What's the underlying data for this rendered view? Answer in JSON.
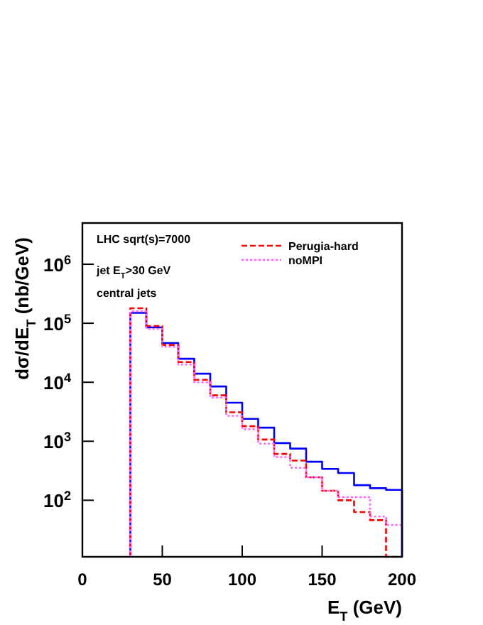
{
  "chart_data": {
    "type": "histogram",
    "xlabel": "E$_{T}$ (GeV)",
    "ylabel": "dσ/dE$_{T}$ (nb/GeV)",
    "annotations": [
      "LHC sqrt(s)=7000",
      "jet  E$_{T}$>30 GeV",
      "central jets"
    ],
    "bins": [
      30,
      40,
      50,
      60,
      70,
      80,
      90,
      100,
      110,
      120,
      130,
      140,
      150,
      160,
      170,
      180,
      190,
      200
    ],
    "series": [
      {
        "color": "#0000ff",
        "line_style": "solid",
        "values": [
          150000,
          85000,
          46000,
          25000,
          14000,
          8500,
          4500,
          2400,
          1700,
          930,
          750,
          450,
          340,
          290,
          180,
          160,
          150
        ]
      },
      {
        "name": "Perugia-hard",
        "color": "#ff0000",
        "line_style": "dashed",
        "values": [
          180000,
          90000,
          43000,
          22000,
          11000,
          6000,
          3100,
          1800,
          1070,
          610,
          470,
          245,
          145,
          100,
          63,
          46,
          11
        ]
      },
      {
        "name": "noMPI",
        "color": "#ff66ff",
        "line_style": "dotted",
        "values": [
          160000,
          80000,
          40000,
          20000,
          10000,
          5500,
          2700,
          1600,
          910,
          540,
          355,
          245,
          145,
          113,
          113,
          53,
          38
        ]
      }
    ],
    "log": "y",
    "xlim": [
      0,
      200
    ],
    "xticks": [
      0,
      50,
      100,
      150,
      200
    ],
    "ylim": [
      11,
      5000000
    ],
    "yticks": [
      {
        "value": 100,
        "label": "10$^{2}$"
      },
      {
        "value": 1000,
        "label": "10$^{3}$"
      },
      {
        "value": 10000,
        "label": "10$^{4}$"
      },
      {
        "value": 100000,
        "label": "10$^{5}$"
      },
      {
        "value": 1000000,
        "label": "10$^{6}$"
      }
    ],
    "legend": "top right"
  }
}
